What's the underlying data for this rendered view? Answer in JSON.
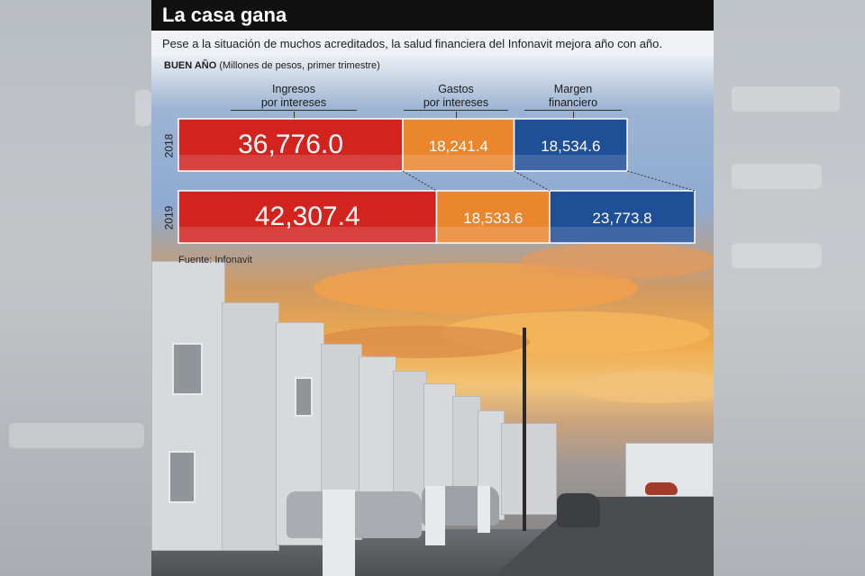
{
  "header": {
    "title": "La casa gana"
  },
  "subtitle": "Pese a la situación de muchos acreditados, la salud financiera del Infonavit mejora año con año.",
  "caption": {
    "bold": "BUEN AÑO",
    "rest": " (Millones de pesos, primer trimestre)"
  },
  "source": "Fuente: Infonavit",
  "colors": {
    "ingresos": "#d2231f",
    "gastos": "#e9862e",
    "margen": "#1f4f96"
  },
  "chart_data": {
    "type": "bar",
    "orientation": "horizontal-stacked",
    "title": "BUEN AÑO",
    "subtitle": "(Millones de pesos, primer trimestre)",
    "categories": [
      "2018",
      "2019"
    ],
    "series": [
      {
        "name": "Ingresos por intereses",
        "values": [
          36776.0,
          42307.4
        ],
        "labels": [
          "36,776.0",
          "42,307.4"
        ]
      },
      {
        "name": "Gastos por intereses",
        "values": [
          18241.4,
          18533.6
        ],
        "labels": [
          "18,241.4",
          "18,533.6"
        ]
      },
      {
        "name": "Margen financiero",
        "values": [
          18534.6,
          23773.8
        ],
        "labels": [
          "18,534.6",
          "23,773.8"
        ]
      }
    ],
    "series_labels": [
      [
        "Ingresos",
        "por intereses"
      ],
      [
        "Gastos",
        "por intereses"
      ],
      [
        "Margen",
        "financiero"
      ]
    ],
    "grid": false,
    "legend": "top"
  }
}
